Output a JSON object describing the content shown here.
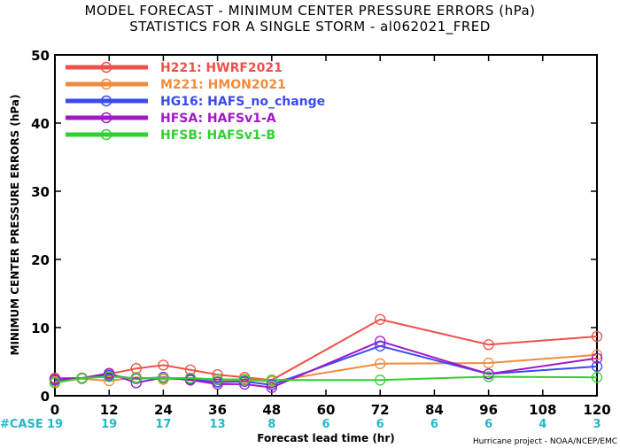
{
  "chart_data": {
    "type": "line",
    "title": "MODEL FORECAST - MINIMUM CENTER PRESSURE ERRORS (hPa)",
    "subtitle": "STATISTICS FOR A SINGLE STORM - al062021_FRED",
    "xlabel": "Forecast lead time (hr)",
    "ylabel": "MINIMUM CENTER PRESSURE ERRORS (hPa)",
    "xlim": [
      0,
      120
    ],
    "ylim": [
      0,
      50
    ],
    "xticks": [
      "0",
      "12",
      "24",
      "36",
      "48",
      "60",
      "72",
      "84",
      "96",
      "108",
      "120"
    ],
    "yticks": [
      "0",
      "10",
      "20",
      "30",
      "40",
      "50"
    ],
    "case_label": "#CASE",
    "cases": [
      "19",
      "19",
      "17",
      "13",
      "8",
      "6",
      "6",
      "6",
      "6",
      "4",
      "3"
    ],
    "credit": "Hurricane project - NOAA/NCEP/EMC",
    "legend_position": "top-left",
    "series": [
      {
        "name": "H221: HWRF2021",
        "color": "#f0504a",
        "x": [
          0,
          6,
          12,
          18,
          24,
          30,
          36,
          42,
          48,
          72,
          96,
          120
        ],
        "values": [
          2.6,
          2.6,
          3.2,
          4.0,
          4.5,
          3.8,
          3.1,
          2.7,
          2.3,
          11.2,
          7.5,
          8.7
        ]
      },
      {
        "name": "M221: HMON2021",
        "color": "#f08c3c",
        "x": [
          0,
          6,
          12,
          18,
          24,
          30,
          36,
          42,
          48,
          72,
          96,
          120
        ],
        "values": [
          2.1,
          2.5,
          2.2,
          2.7,
          2.4,
          2.5,
          2.1,
          2.3,
          2.1,
          4.7,
          4.8,
          6.0
        ]
      },
      {
        "name": "HG16: HAFS_no_change",
        "color": "#3a4af0",
        "x": [
          0,
          6,
          12,
          18,
          24,
          30,
          36,
          42,
          48,
          72,
          96,
          120
        ],
        "values": [
          2.3,
          2.6,
          3.0,
          2.5,
          2.7,
          2.4,
          2.0,
          2.1,
          1.6,
          7.3,
          3.2,
          4.3
        ]
      },
      {
        "name": "HFSA: HAFSv1-A",
        "color": "#a018c8",
        "x": [
          0,
          6,
          12,
          18,
          24,
          30,
          36,
          42,
          48,
          72,
          96,
          120
        ],
        "values": [
          2.4,
          2.6,
          3.3,
          1.9,
          2.7,
          2.3,
          1.7,
          1.7,
          1.2,
          8.0,
          3.2,
          5.5
        ]
      },
      {
        "name": "HFSB: HAFSv1-B",
        "color": "#30d030",
        "x": [
          0,
          6,
          12,
          18,
          24,
          30,
          36,
          42,
          48,
          72,
          96,
          120
        ],
        "values": [
          1.9,
          2.6,
          2.8,
          2.6,
          2.6,
          2.6,
          2.4,
          2.4,
          2.3,
          2.3,
          2.8,
          2.7
        ]
      }
    ]
  }
}
